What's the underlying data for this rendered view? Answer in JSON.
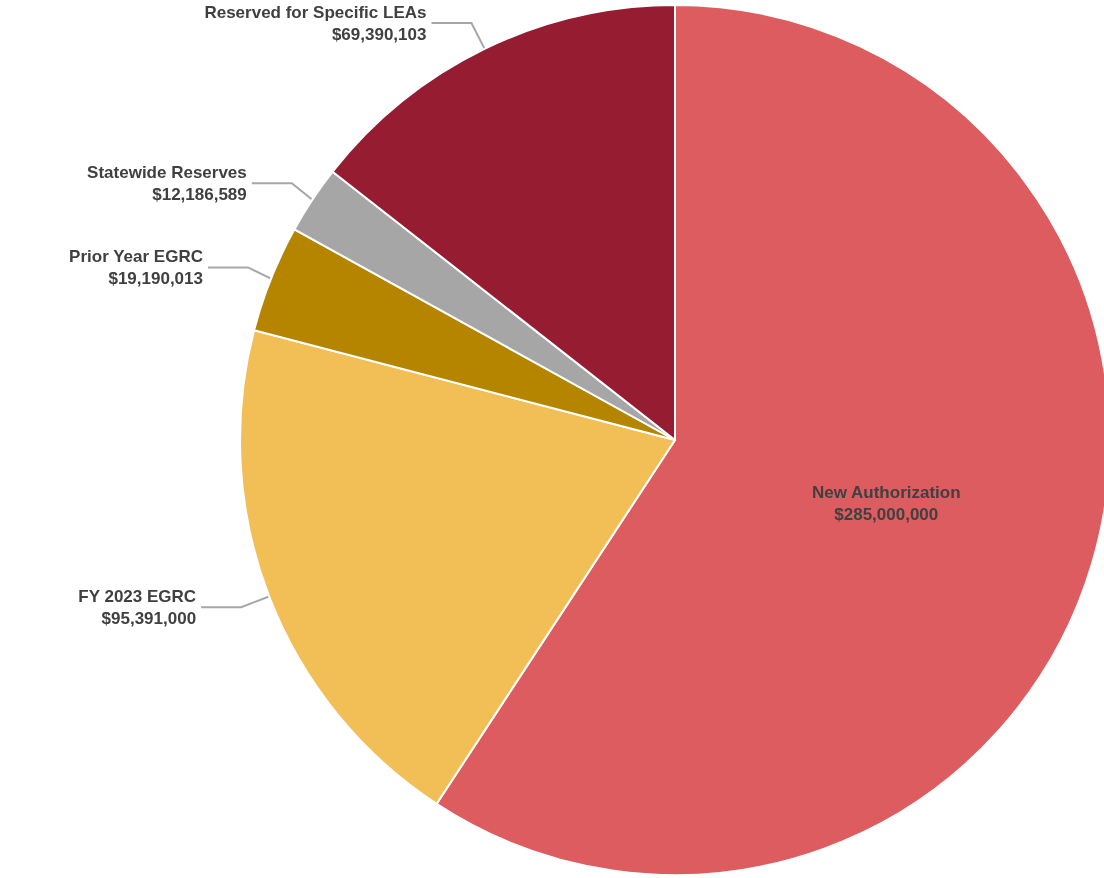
{
  "chart_data": {
    "type": "pie",
    "categories": [
      "New Authorization",
      "FY 2023 EGRC",
      "Prior Year EGRC",
      "Statewide Reserves",
      "Reserved for Specific LEAs"
    ],
    "values": [
      285000000,
      95391000,
      19190013,
      12186589,
      69390103
    ],
    "value_labels": [
      "$285,000,000",
      "$95,391,000",
      "$19,190,013",
      "$12,186,589",
      "$69,390,103"
    ],
    "colors": [
      "#dc5c60",
      "#f2bf57",
      "#b58500",
      "#a6a6a6",
      "#951c31"
    ],
    "legend": false
  }
}
